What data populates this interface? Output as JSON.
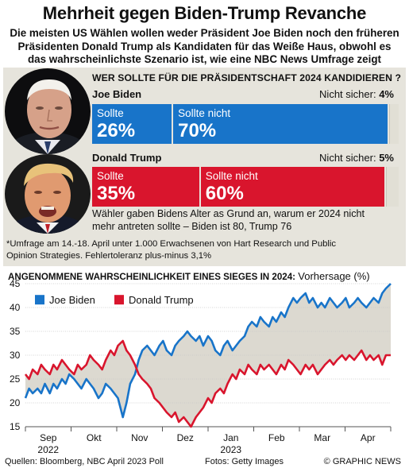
{
  "header": {
    "title": "Mehrheit gegen Biden-Trump Revanche",
    "subtitle_lines": [
      "Die meisten US Wählen wollen weder Präsident Joe Biden noch den früheren",
      "Präsidenten Donald Trump als Kandidaten für das Weiße Haus, obwohl es",
      "das wahrscheinlichste Szenario ist, wie eine NBC News Umfrage zeigt"
    ]
  },
  "poll": {
    "question": "WER SOLLTE FÜR DIE PRÄSIDENTSCHAFT 2024 KANDIDIEREN ?",
    "biden": {
      "name": "Joe Biden",
      "unsure_label": "Nicht sicher:",
      "unsure_value": "4%",
      "should_label": "Sollte",
      "should_value": "26%",
      "should_not_label": "Sollte nicht",
      "should_not_value": "70%",
      "shares": [
        26,
        70,
        4
      ]
    },
    "trump": {
      "name": "Donald Trump",
      "unsure_label": "Nicht sicher:",
      "unsure_value": "5%",
      "should_label": "Sollte",
      "should_value": "35%",
      "should_not_label": "Sollte nicht",
      "should_not_value": "60%",
      "shares": [
        35,
        60,
        5
      ]
    },
    "note_lines": [
      "Wähler gaben Bidens Alter as Grund an, warum er 2024 nicht",
      "mehr antreten sollte – Biden ist 80, Trump 76"
    ],
    "footnote_lines": [
      "*Umfrage am 14.-18. April unter 1.000 Erwachsenen von Hart Research und Public",
      "Opinion Strategies. Fehlertoleranz plus-minus 3,1%"
    ]
  },
  "colors": {
    "biden_blue": "#1874c9",
    "trump_red": "#d9152d",
    "panel_bg": "#e6e4dc",
    "unsure_gray": "#e1dfd5",
    "gap_fill": "#d8d5cb"
  },
  "chart_data": {
    "type": "line",
    "title": "ANGENOMMENE WAHRSCHEINLICHKEIT EINES SIEGES IN 2024:",
    "ylabel": "Vorhersage (%)",
    "ylim": [
      15,
      45
    ],
    "yticks": [
      15,
      20,
      25,
      30,
      35,
      40,
      45
    ],
    "grid": true,
    "legend": "top-left",
    "x_labels": [
      "Sep",
      "Okt",
      "Nov",
      "Dez",
      "Jan",
      "Feb",
      "Mar",
      "Apr"
    ],
    "x_year_labels": [
      "2022",
      "2023"
    ],
    "x_month_index": [
      0,
      0.3,
      0.6,
      1,
      1.3,
      1.6,
      2,
      2.3,
      2.6,
      3,
      3.3,
      3.6,
      4,
      4.3,
      4.6,
      5,
      5.3,
      5.6,
      6,
      6.3,
      6.6,
      7,
      7.3,
      7.6,
      8,
      8.3,
      8.6,
      9,
      9.3,
      9.6,
      10,
      10.3,
      10.6,
      11,
      11.3,
      11.6,
      12,
      12.3,
      12.6,
      13,
      13.3,
      13.6,
      14,
      14.3,
      14.6,
      15,
      15.3,
      15.6,
      16,
      16.3,
      16.6,
      17,
      17.3,
      17.6,
      18,
      18.3,
      18.6,
      19,
      19.3,
      19.6,
      20,
      20.3,
      20.6,
      21,
      21.3,
      21.6,
      22,
      22.3,
      22.6,
      23,
      23.3,
      23.6,
      24,
      24.3,
      24.6,
      25,
      25.3,
      25.6,
      26,
      26.3,
      26.6,
      27,
      27.3,
      27.6,
      28,
      28.3,
      28.6,
      29,
      29.3,
      29.6,
      30
    ],
    "series": [
      {
        "name": "Joe Biden",
        "color": "#1874c9",
        "values": [
          21,
          23,
          22,
          23,
          22,
          24,
          22,
          24,
          23,
          25,
          24,
          26,
          25,
          24,
          23,
          25,
          24,
          23,
          21,
          22,
          24,
          23,
          22,
          21,
          17,
          20,
          24,
          26,
          29,
          31,
          32,
          31,
          30,
          32,
          33,
          31,
          30,
          32,
          33,
          34,
          35,
          34,
          33,
          34,
          32,
          34,
          33,
          31,
          30,
          32,
          33,
          31,
          32,
          33,
          34,
          36,
          37,
          36,
          38,
          37,
          36,
          38,
          37,
          39,
          38,
          40,
          42,
          41,
          42,
          43,
          41,
          42,
          40,
          41,
          40,
          42,
          41,
          40,
          41,
          42,
          40,
          41,
          42,
          41,
          40,
          41,
          42,
          41,
          43,
          44,
          45
        ]
      },
      {
        "name": "Donald Trump",
        "color": "#d9152d",
        "values": [
          26,
          25,
          27,
          26,
          28,
          27,
          26,
          28,
          27,
          29,
          28,
          27,
          26,
          28,
          27,
          28,
          30,
          29,
          28,
          27,
          29,
          31,
          30,
          32,
          33,
          31,
          30,
          28,
          26,
          25,
          24,
          23,
          21,
          20,
          19,
          18,
          17,
          18,
          16,
          17,
          16,
          15,
          17,
          18,
          19,
          21,
          20,
          22,
          23,
          22,
          24,
          26,
          25,
          27,
          26,
          28,
          27,
          26,
          28,
          27,
          28,
          27,
          26,
          28,
          27,
          29,
          28,
          27,
          26,
          28,
          27,
          28,
          26,
          27,
          28,
          29,
          28,
          29,
          30,
          29,
          30,
          29,
          30,
          31,
          29,
          30,
          29,
          30,
          28,
          30,
          30
        ]
      }
    ]
  },
  "credits": {
    "sources": "Quellen: Bloomberg, NBC April 2023 Poll",
    "photos": "Fotos: Getty Images",
    "copyright": "© GRAPHIC NEWS"
  }
}
